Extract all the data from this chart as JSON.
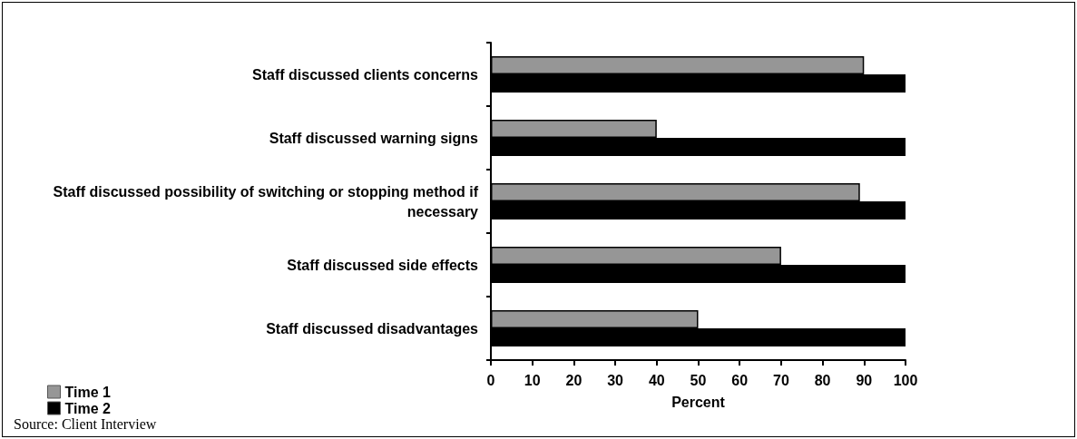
{
  "chart_data": {
    "type": "bar",
    "orientation": "horizontal",
    "xlabel": "Percent",
    "categories": [
      "Staff discussed clients concerns",
      "Staff discussed warning signs",
      "Staff discussed possibility of switching or stopping method if necessary",
      "Staff discussed side effects",
      "Staff discussed disadvantages"
    ],
    "series": [
      {
        "name": "Time 1",
        "color": "#969696",
        "values": [
          90,
          40,
          89,
          70,
          50
        ]
      },
      {
        "name": "Time 2",
        "color": "#000000",
        "values": [
          100,
          100,
          100,
          100,
          100
        ]
      }
    ],
    "xlim": [
      0,
      100
    ],
    "xticks": [
      0,
      10,
      20,
      30,
      40,
      50,
      60,
      70,
      80,
      90,
      100
    ],
    "grid": false,
    "legend": "bottom left",
    "annotations": [
      "Source: Client Interview"
    ]
  }
}
